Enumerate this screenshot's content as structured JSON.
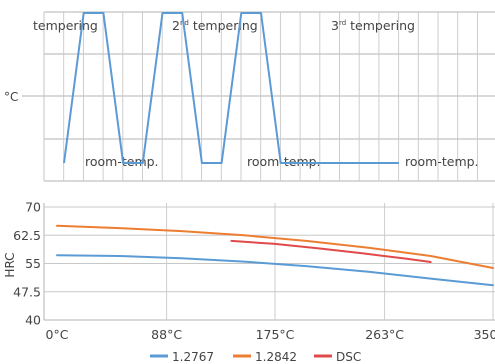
{
  "colors": {
    "profile": "#5b9bd5",
    "grid": "#b3b3b3",
    "grid_minor": "#c8c8c8",
    "text": "#444444"
  },
  "icons": {},
  "chart_data": [
    {
      "type": "line",
      "title": "",
      "ylabel": "°C",
      "xlabel": "",
      "annotations": {
        "t1": "tempering",
        "t2_num": "2",
        "t2_sup": "nd",
        "t2_word": " tempering",
        "t3_num": "3",
        "t3_sup": "rd",
        "t3_word": " tempering",
        "r1": "room-temp.",
        "r2": "room-temp.",
        "r3": "room-temp."
      },
      "x": [
        0,
        1,
        2,
        3,
        4,
        5,
        6,
        7,
        8,
        9,
        10,
        11,
        12,
        13,
        14,
        15,
        16,
        17
      ],
      "series": [
        {
          "values": [
            0,
            1,
            1,
            0,
            0,
            1,
            1,
            0,
            0,
            1,
            1,
            0,
            0,
            0,
            0,
            0,
            0,
            0
          ]
        }
      ],
      "profile_levels": [
        "room-temp.",
        "tempering"
      ],
      "grid": true
    },
    {
      "type": "line",
      "title": "",
      "xlabel": "",
      "ylabel": "HRC",
      "xlim": [
        0,
        350
      ],
      "ylim": [
        40,
        70
      ],
      "x_ticks": [
        "0°C",
        "88°C",
        "175°C",
        "263°C",
        "350°C"
      ],
      "y_ticks": [
        "70",
        "62.5",
        "55",
        "47.5",
        "40"
      ],
      "grid": true,
      "legend_position": "bottom",
      "series": [
        {
          "name": "1.2767",
          "color": "#5b9bd5",
          "x": [
            0,
            50,
            100,
            150,
            200,
            250,
            300,
            350
          ],
          "values": [
            57.2,
            57.0,
            56.4,
            55.5,
            54.3,
            52.8,
            51.0,
            49.2
          ]
        },
        {
          "name": "1.2842",
          "color": "#ed7d31",
          "x": [
            0,
            50,
            100,
            150,
            200,
            250,
            300,
            350
          ],
          "values": [
            65.0,
            64.4,
            63.6,
            62.5,
            61.0,
            59.2,
            57.0,
            53.8
          ]
        },
        {
          "name": "DSC",
          "color": "#e04a4a",
          "x": [
            140,
            175,
            210,
            245,
            280,
            300
          ],
          "values": [
            61.0,
            60.2,
            59.0,
            57.7,
            56.3,
            55.4
          ]
        }
      ]
    }
  ]
}
